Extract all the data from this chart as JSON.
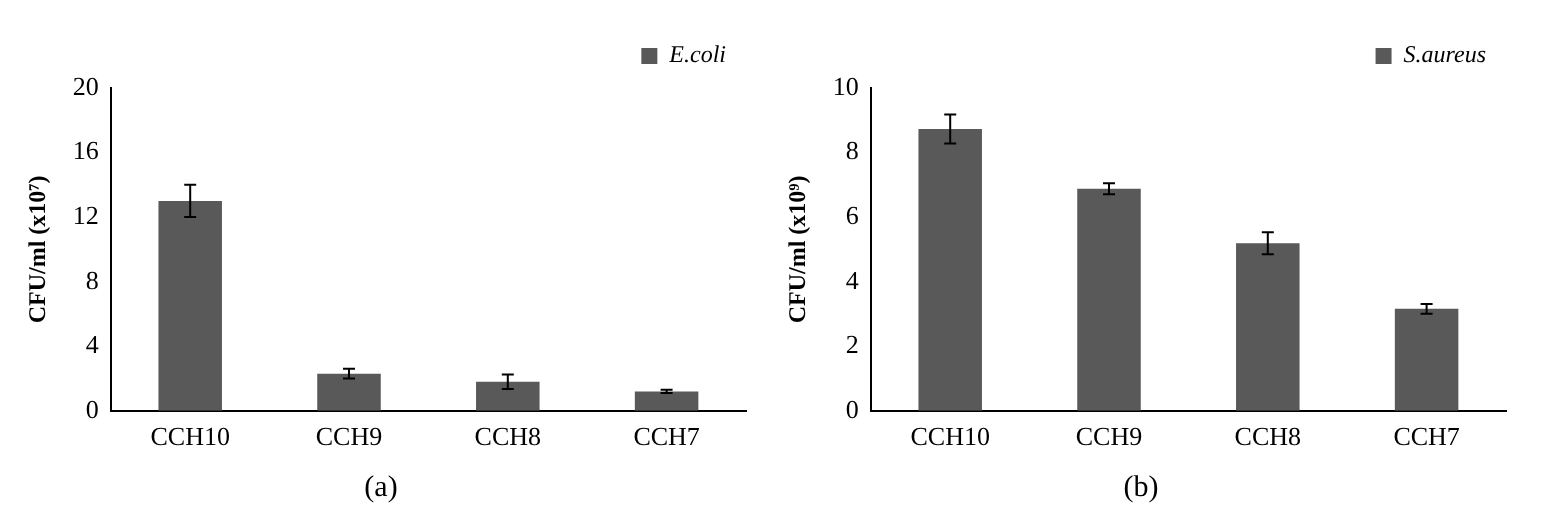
{
  "chart_data": [
    {
      "type": "bar",
      "title": "(a)",
      "ylabel": "CFU/ml (x10⁷)",
      "categories": [
        "CCH10",
        "CCH9",
        "CCH8",
        "CCH7"
      ],
      "series": [
        {
          "name": "E.coli",
          "color": "#595959",
          "values": [
            13.0,
            2.3,
            1.8,
            1.2
          ],
          "errors": [
            1.0,
            0.3,
            0.45,
            0.1
          ]
        }
      ],
      "ylim": [
        0,
        20
      ],
      "yticks": [
        0,
        4,
        8,
        12,
        16,
        20
      ],
      "legend": "top right"
    },
    {
      "type": "bar",
      "title": "(b)",
      "ylabel": "CFU/ml (x10⁹)",
      "categories": [
        "CCH10",
        "CCH9",
        "CCH8",
        "CCH7"
      ],
      "series": [
        {
          "name": "S.aureus",
          "color": "#595959",
          "values": [
            8.73,
            6.88,
            5.19,
            3.16
          ],
          "errors": [
            0.45,
            0.17,
            0.34,
            0.15
          ]
        }
      ],
      "ylim": [
        0,
        10
      ],
      "yticks": [
        0,
        2,
        4,
        6,
        8,
        10
      ],
      "legend": "top right"
    }
  ]
}
